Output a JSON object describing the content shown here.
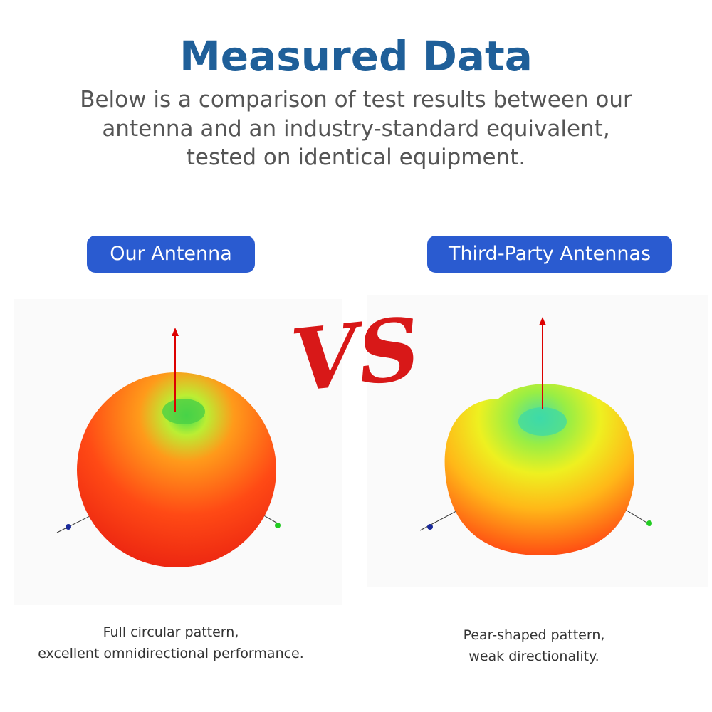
{
  "header": {
    "title": "Measured Data",
    "subtitle": [
      "Below is a comparison of test results between our",
      "antenna and an industry-standard equivalent,",
      "tested on identical equipment."
    ]
  },
  "vs_mark": "VS",
  "panels": [
    {
      "label": "Our Antenna",
      "caption": [
        "Full circular pattern,",
        "excellent omnidirectional performance."
      ]
    },
    {
      "label": "Third-Party Antennas",
      "caption": [
        "Pear-shaped pattern,",
        "weak directionality."
      ]
    }
  ]
}
